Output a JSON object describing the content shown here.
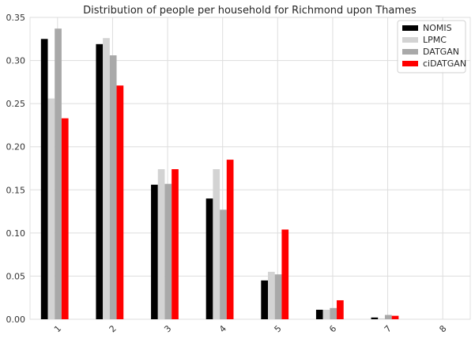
{
  "chart_data": {
    "type": "bar",
    "title": "Distribution of people per household for Richmond upon Thames",
    "xlabel": "",
    "ylabel": "",
    "categories": [
      "1",
      "2",
      "3",
      "4",
      "5",
      "6",
      "7",
      "8"
    ],
    "ylim": [
      0,
      0.35
    ],
    "yticks": [
      "0.00",
      "0.05",
      "0.10",
      "0.15",
      "0.20",
      "0.25",
      "0.30",
      "0.35"
    ],
    "grid": true,
    "legend_position": "top-right",
    "series": [
      {
        "name": "NOMIS",
        "color": "#000000",
        "values": [
          0.325,
          0.319,
          0.156,
          0.14,
          0.045,
          0.011,
          0.002,
          0.0
        ]
      },
      {
        "name": "LPMC",
        "color": "#d3d3d3",
        "values": [
          0.256,
          0.326,
          0.174,
          0.174,
          0.055,
          0.011,
          0.001,
          0.0
        ]
      },
      {
        "name": "DATGAN",
        "color": "#a9a9a9",
        "values": [
          0.337,
          0.306,
          0.157,
          0.127,
          0.052,
          0.013,
          0.005,
          0.0
        ]
      },
      {
        "name": "ciDATGAN",
        "color": "#ff0000",
        "values": [
          0.233,
          0.271,
          0.174,
          0.185,
          0.104,
          0.022,
          0.004,
          0.0
        ]
      }
    ]
  }
}
